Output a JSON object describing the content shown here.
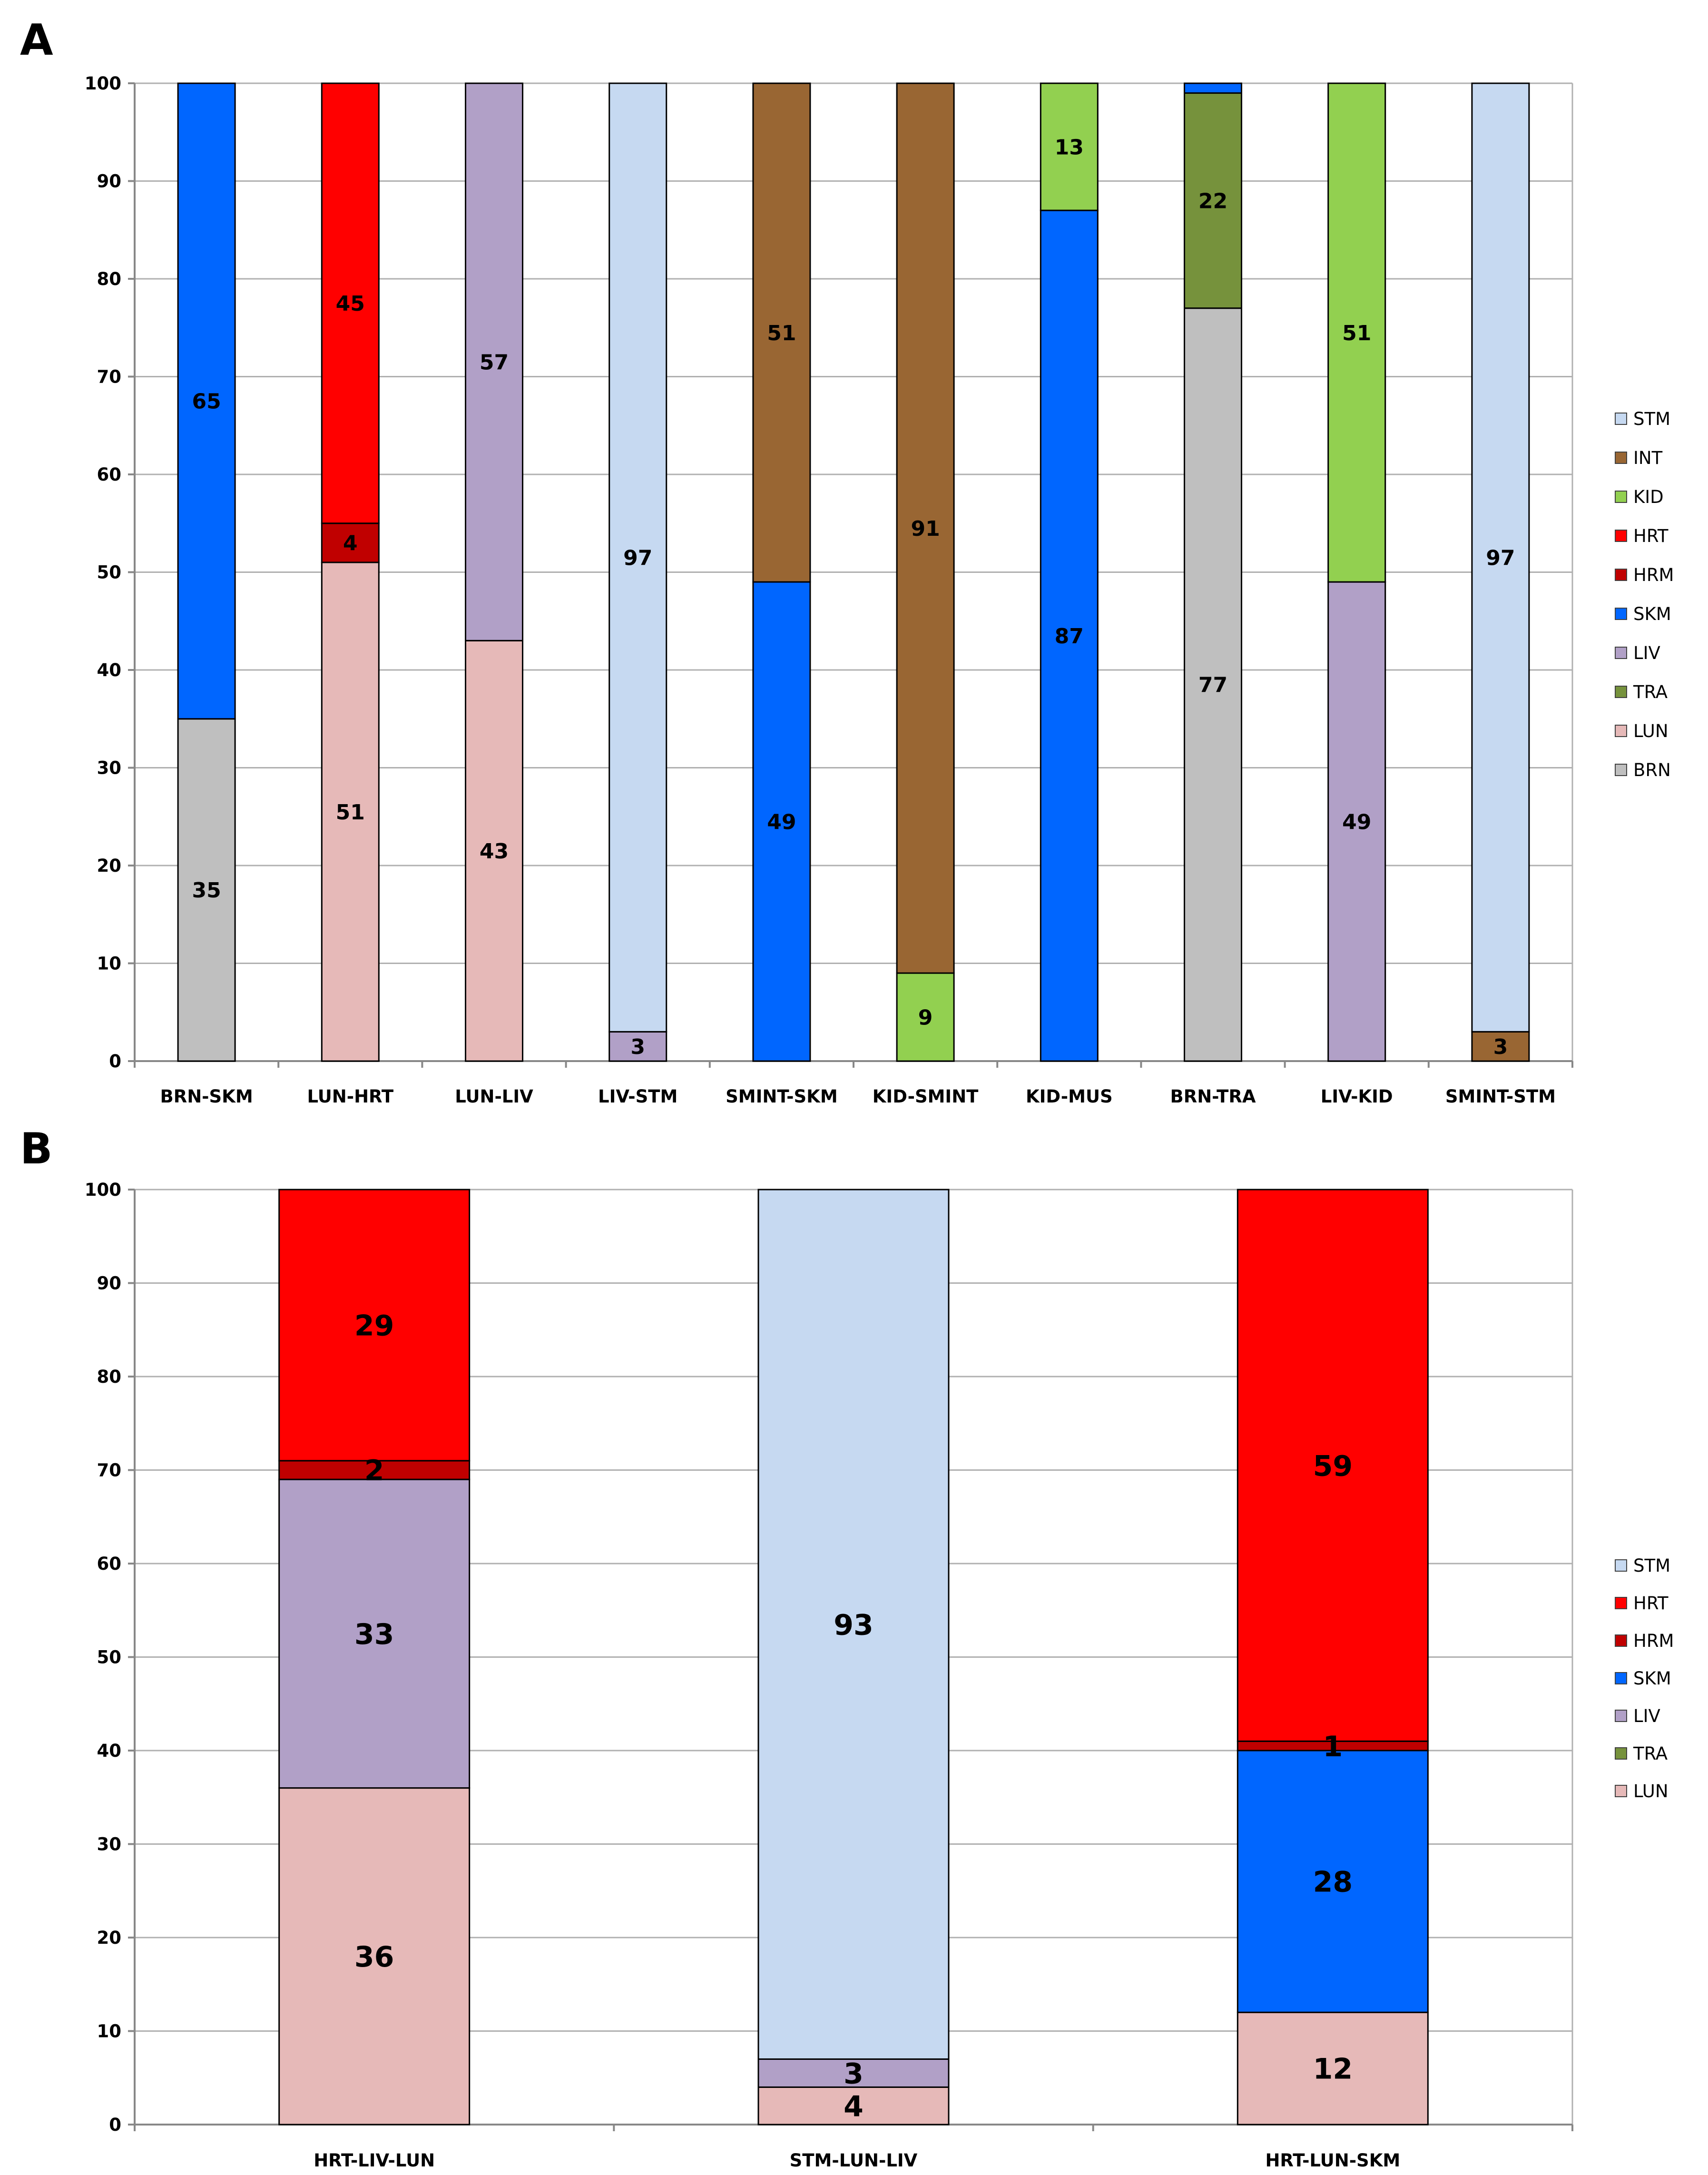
{
  "colors": {
    "STM": "#c6d9f1",
    "INT": "#996633",
    "KID": "#92d050",
    "HRT": "#ff0000",
    "HRM": "#c00000",
    "SKM": "#0066ff",
    "LIV": "#b1a0c7",
    "TRA": "#76923c",
    "LUN": "#e6b9b8",
    "BRN": "#bfbfbf"
  },
  "chart_data": [
    {
      "panel": "A",
      "type": "bar",
      "stacked": true,
      "ylim": [
        0,
        100
      ],
      "yticks": [
        0,
        10,
        20,
        30,
        40,
        50,
        60,
        70,
        80,
        90,
        100
      ],
      "grid": true,
      "legend": [
        "STM",
        "INT",
        "KID",
        "HRT",
        "HRM",
        "SKM",
        "LIV",
        "TRA",
        "LUN",
        "BRN"
      ],
      "legend_position": "right",
      "bars": [
        {
          "category": "BRN-SKM",
          "segments": [
            {
              "series": "BRN",
              "value": 35,
              "label": "35"
            },
            {
              "series": "SKM",
              "value": 65,
              "label": "65"
            }
          ]
        },
        {
          "category": "LUN-HRT",
          "segments": [
            {
              "series": "LUN",
              "value": 51,
              "label": "51"
            },
            {
              "series": "HRM",
              "value": 4,
              "label": "4"
            },
            {
              "series": "HRT",
              "value": 45,
              "label": "45"
            }
          ]
        },
        {
          "category": "LUN-LIV",
          "segments": [
            {
              "series": "LUN",
              "value": 43,
              "label": "43"
            },
            {
              "series": "LIV",
              "value": 57,
              "label": "57"
            }
          ]
        },
        {
          "category": "LIV-STM",
          "segments": [
            {
              "series": "LIV",
              "value": 3,
              "label": "3"
            },
            {
              "series": "STM",
              "value": 97,
              "label": "97"
            }
          ]
        },
        {
          "category": "SMINT-SKM",
          "segments": [
            {
              "series": "SKM",
              "value": 49,
              "label": "49"
            },
            {
              "series": "INT",
              "value": 51,
              "label": "51"
            }
          ]
        },
        {
          "category": "KID-SMINT",
          "segments": [
            {
              "series": "KID",
              "value": 9,
              "label": "9"
            },
            {
              "series": "INT",
              "value": 91,
              "label": "91"
            }
          ]
        },
        {
          "category": "KID-MUS",
          "segments": [
            {
              "series": "SKM",
              "value": 87,
              "label": "87"
            },
            {
              "series": "KID",
              "value": 13,
              "label": "13"
            }
          ]
        },
        {
          "category": "BRN-TRA",
          "segments": [
            {
              "series": "BRN",
              "value": 77,
              "label": "77"
            },
            {
              "series": "TRA",
              "value": 22,
              "label": "22"
            },
            {
              "series": "SKM",
              "value": 1,
              "label": ""
            }
          ]
        },
        {
          "category": "LIV-KID",
          "segments": [
            {
              "series": "LIV",
              "value": 49,
              "label": "49"
            },
            {
              "series": "KID",
              "value": 51,
              "label": "51"
            }
          ]
        },
        {
          "category": "SMINT-STM",
          "segments": [
            {
              "series": "INT",
              "value": 3,
              "label": "3"
            },
            {
              "series": "STM",
              "value": 97,
              "label": "97"
            }
          ]
        }
      ]
    },
    {
      "panel": "B",
      "type": "bar",
      "stacked": true,
      "ylim": [
        0,
        100
      ],
      "yticks": [
        0,
        10,
        20,
        30,
        40,
        50,
        60,
        70,
        80,
        90,
        100
      ],
      "grid": true,
      "legend": [
        "STM",
        "HRT",
        "HRM",
        "SKM",
        "LIV",
        "TRA",
        "LUN"
      ],
      "legend_position": "right",
      "bars": [
        {
          "category": "HRT-LIV-LUN",
          "segments": [
            {
              "series": "LUN",
              "value": 36,
              "label": "36"
            },
            {
              "series": "LIV",
              "value": 33,
              "label": "33"
            },
            {
              "series": "HRM",
              "value": 2,
              "label": "2"
            },
            {
              "series": "HRT",
              "value": 29,
              "label": "29"
            }
          ]
        },
        {
          "category": "STM-LUN-LIV",
          "segments": [
            {
              "series": "LUN",
              "value": 4,
              "label": "4"
            },
            {
              "series": "LIV",
              "value": 3,
              "label": "3"
            },
            {
              "series": "STM",
              "value": 93,
              "label": "93"
            }
          ]
        },
        {
          "category": "HRT-LUN-SKM",
          "segments": [
            {
              "series": "LUN",
              "value": 12,
              "label": "12"
            },
            {
              "series": "SKM",
              "value": 28,
              "label": "28"
            },
            {
              "series": "HRM",
              "value": 1,
              "label": "1"
            },
            {
              "series": "HRT",
              "value": 59,
              "label": "59"
            }
          ]
        }
      ]
    }
  ]
}
